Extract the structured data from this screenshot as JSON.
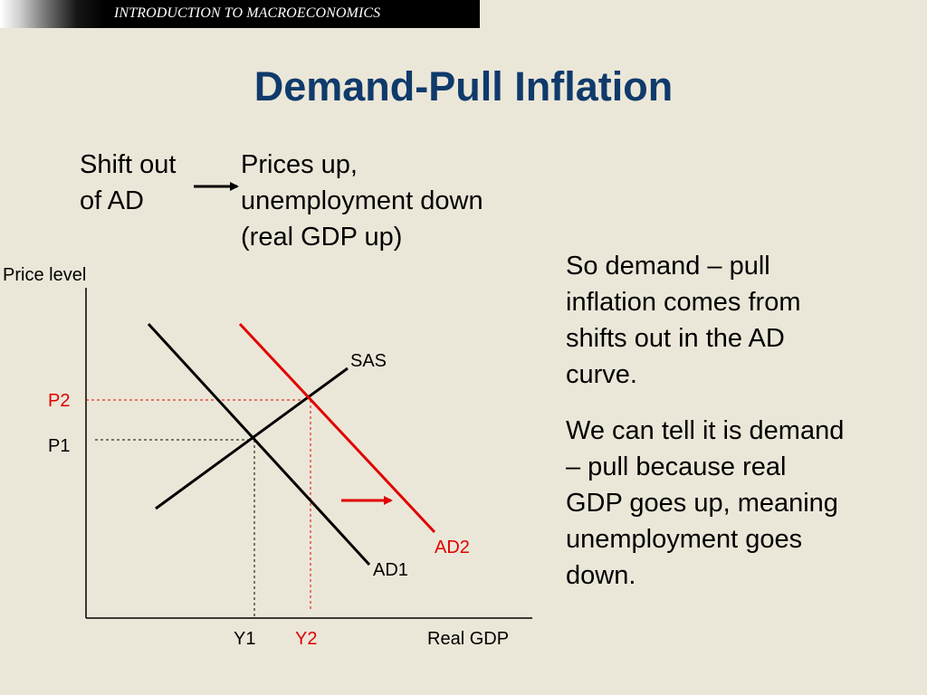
{
  "header": {
    "text": "INTRODUCTION TO MACROECONOMICS"
  },
  "title": "Demand-Pull Inflation",
  "shift": {
    "lines": [
      "Shift out",
      "of AD"
    ]
  },
  "result": {
    "lines": [
      "Prices up,",
      "unemployment down",
      "(real GDP up)"
    ]
  },
  "explanation": {
    "paragraph1": [
      "So demand – pull",
      "inflation comes from",
      "shifts out in the AD",
      "curve."
    ],
    "paragraph2": [
      "We can tell it is demand",
      "– pull because real",
      "GDP goes up, meaning",
      "unemployment goes",
      "down."
    ]
  },
  "diagram": {
    "y_axis_label": "Price level",
    "x_axis_label": "Real GDP",
    "curves": {
      "sas": "SAS",
      "ad1": "AD1",
      "ad2": "AD2"
    },
    "price_labels": {
      "p1": "P1",
      "p2": "P2"
    },
    "output_labels": {
      "y1": "Y1",
      "y2": "Y2"
    }
  },
  "colors": {
    "title": "#0f3a6b",
    "background": "#ebe7d8",
    "accent_red": "#e00000",
    "black": "#000000"
  }
}
